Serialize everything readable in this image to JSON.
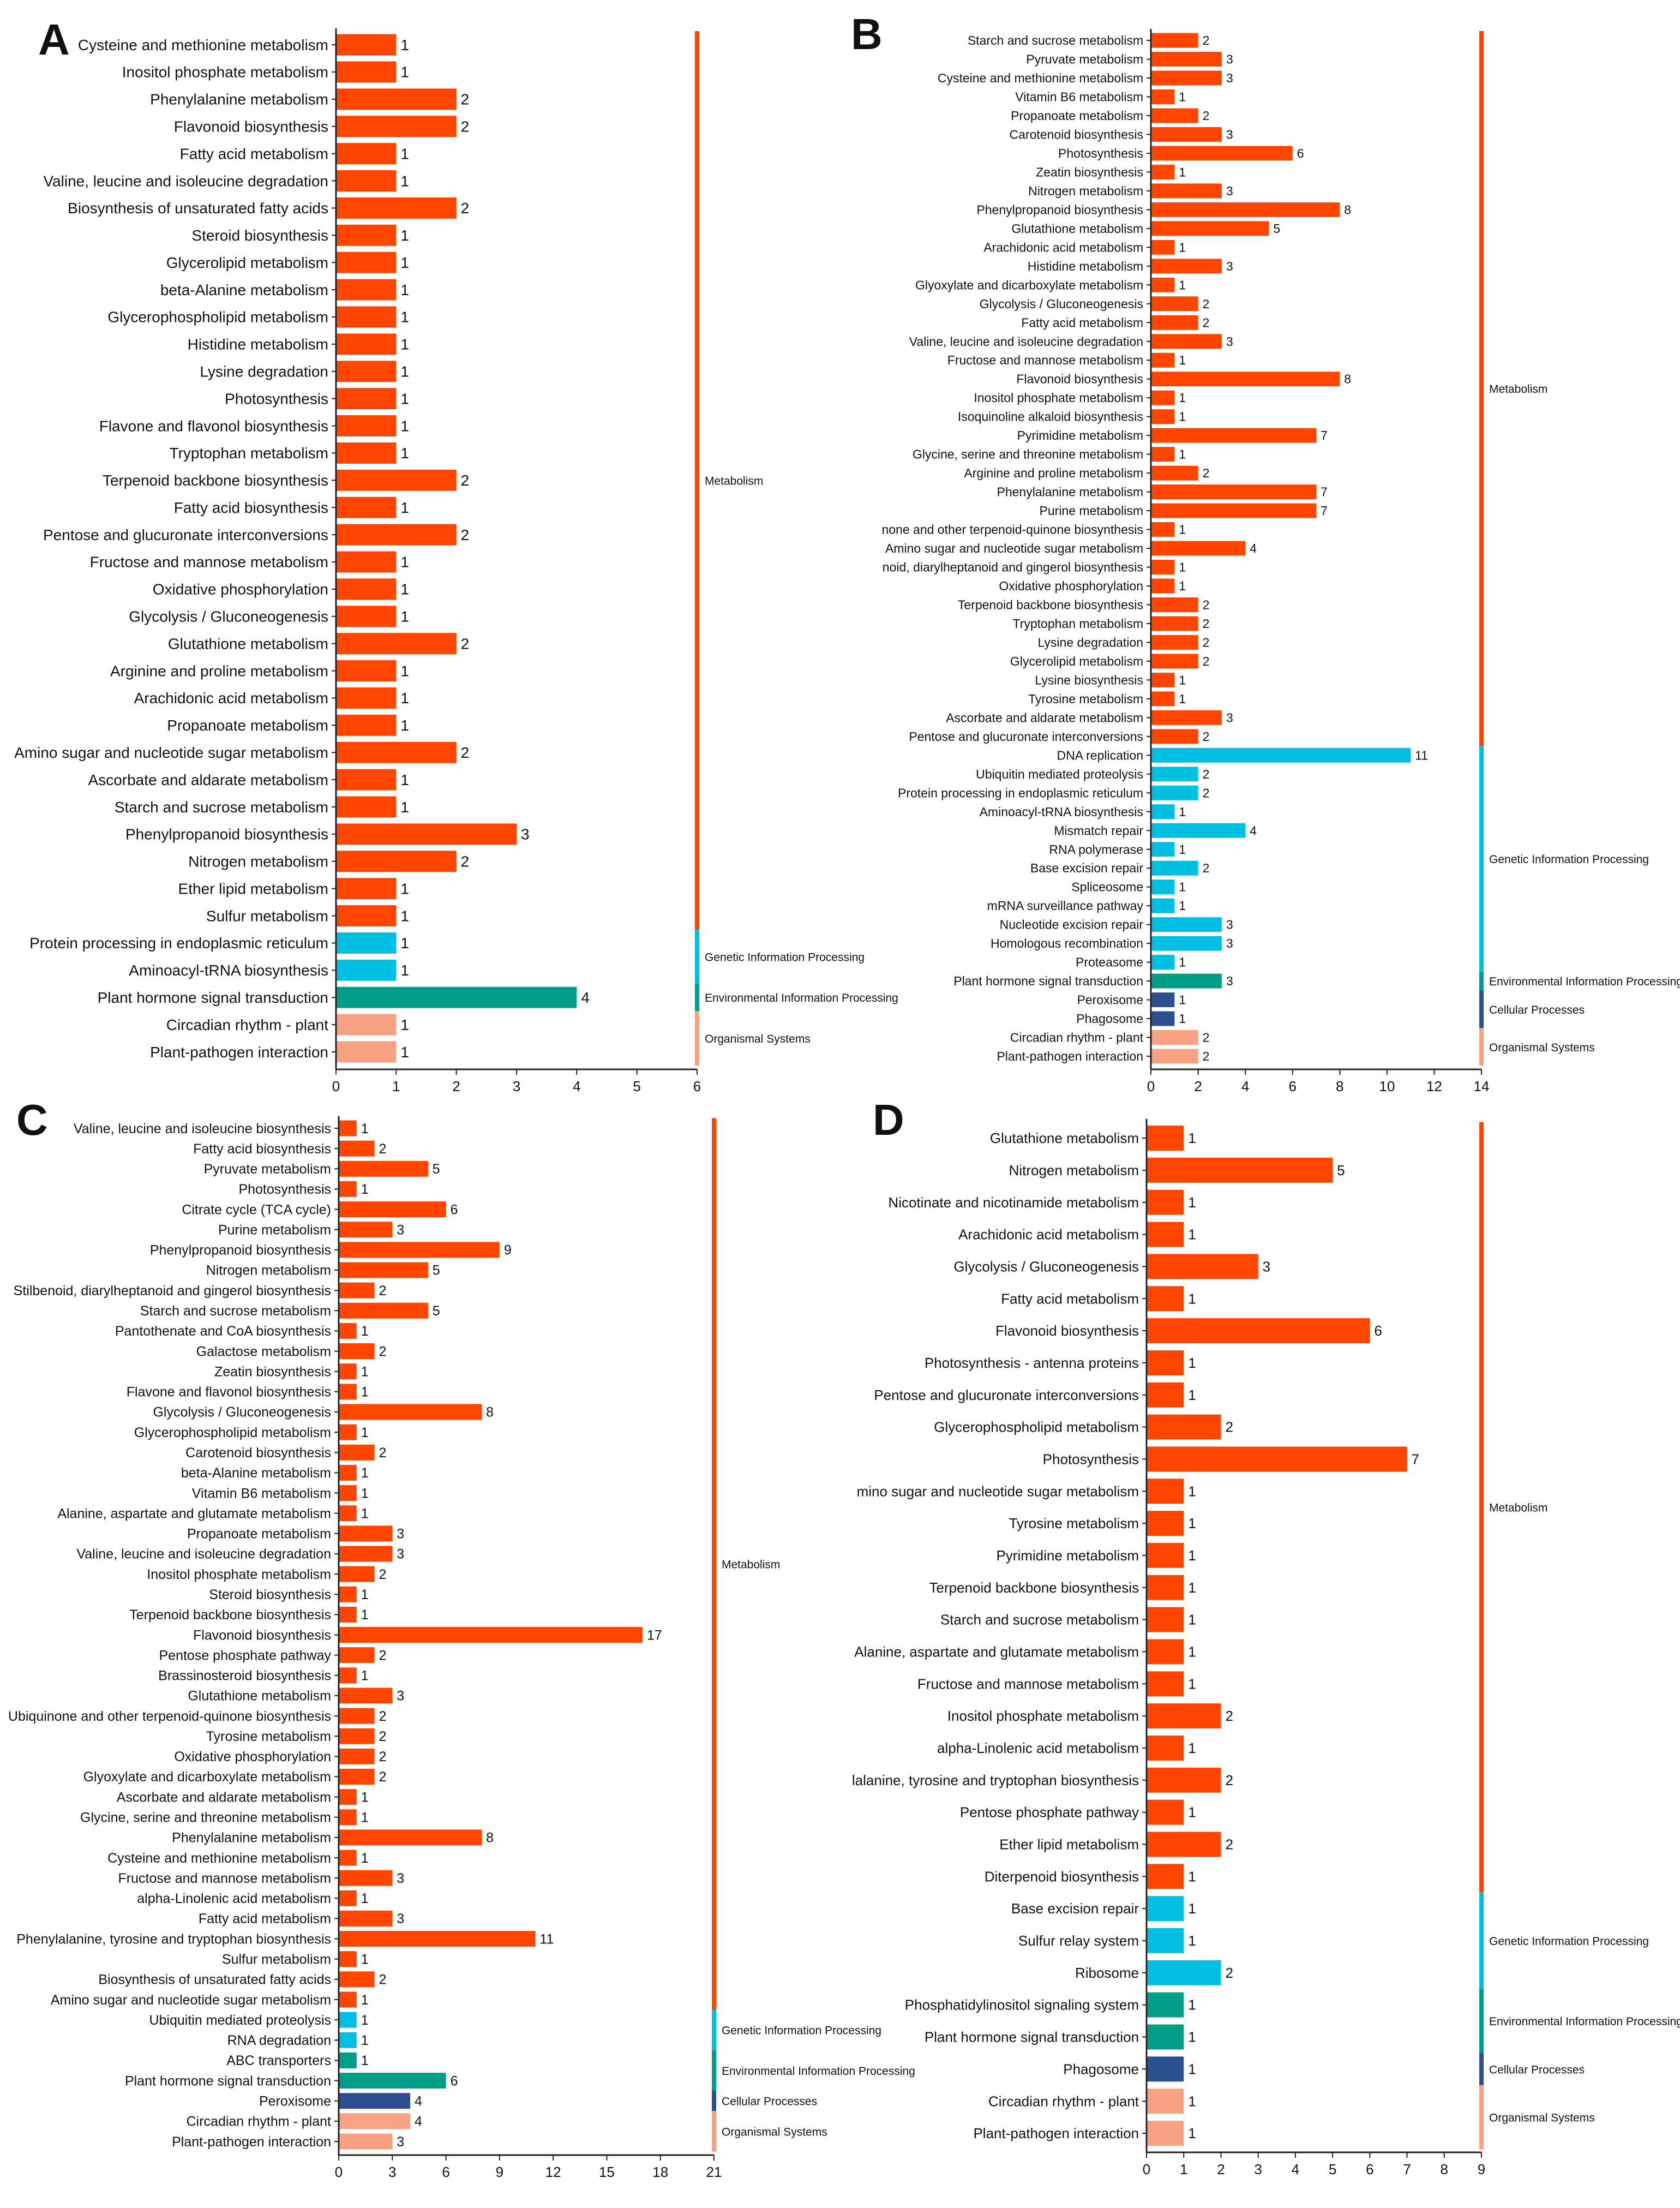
{
  "colors": {
    "Metabolism": "#FF4500",
    "Genetic Information Processing": "#00BFE3",
    "Environmental Information Processing": "#009E86",
    "Cellular Processes": "#2B4F8F",
    "Organismal Systems": "#F9A183"
  },
  "chart_data": [
    {
      "panel": "A",
      "type": "bar",
      "orientation": "horizontal",
      "xlim": [
        0,
        6
      ],
      "xticks": [
        0,
        1,
        2,
        3,
        4,
        5,
        6
      ],
      "groups": [
        {
          "name": "Metabolism",
          "items": [
            [
              "Cysteine and methionine metabolism",
              1
            ],
            [
              "Inositol phosphate metabolism",
              1
            ],
            [
              "Phenylalanine metabolism",
              2
            ],
            [
              "Flavonoid biosynthesis",
              2
            ],
            [
              "Fatty acid metabolism",
              1
            ],
            [
              "Valine, leucine and isoleucine degradation",
              1
            ],
            [
              "Biosynthesis of unsaturated fatty acids",
              2
            ],
            [
              "Steroid biosynthesis",
              1
            ],
            [
              "Glycerolipid metabolism",
              1
            ],
            [
              "beta-Alanine metabolism",
              1
            ],
            [
              "Glycerophospholipid metabolism",
              1
            ],
            [
              "Histidine metabolism",
              1
            ],
            [
              "Lysine degradation",
              1
            ],
            [
              "Photosynthesis",
              1
            ],
            [
              "Flavone and flavonol biosynthesis",
              1
            ],
            [
              "Tryptophan metabolism",
              1
            ],
            [
              "Terpenoid backbone biosynthesis",
              2
            ],
            [
              "Fatty acid biosynthesis",
              1
            ],
            [
              "Pentose and glucuronate interconversions",
              2
            ],
            [
              "Fructose and mannose metabolism",
              1
            ],
            [
              "Oxidative phosphorylation",
              1
            ],
            [
              "Glycolysis / Gluconeogenesis",
              1
            ],
            [
              "Glutathione metabolism",
              2
            ],
            [
              "Arginine and proline metabolism",
              1
            ],
            [
              "Arachidonic acid metabolism",
              1
            ],
            [
              "Propanoate metabolism",
              1
            ],
            [
              "Amino sugar and nucleotide sugar metabolism",
              2
            ],
            [
              "Ascorbate and aldarate metabolism",
              1
            ],
            [
              "Starch and sucrose metabolism",
              1
            ],
            [
              "Phenylpropanoid biosynthesis",
              3
            ],
            [
              "Nitrogen metabolism",
              2
            ],
            [
              "Ether lipid metabolism",
              1
            ],
            [
              "Sulfur metabolism",
              1
            ]
          ]
        },
        {
          "name": "Genetic Information Processing",
          "items": [
            [
              "Protein processing in endoplasmic reticulum",
              1
            ],
            [
              "Aminoacyl-tRNA biosynthesis",
              1
            ]
          ]
        },
        {
          "name": "Environmental Information Processing",
          "items": [
            [
              "Plant hormone signal transduction",
              4
            ]
          ]
        },
        {
          "name": "Organismal Systems",
          "items": [
            [
              "Circadian rhythm - plant",
              1
            ],
            [
              "Plant-pathogen interaction",
              1
            ]
          ]
        }
      ]
    },
    {
      "panel": "B",
      "type": "bar",
      "orientation": "horizontal",
      "xlim": [
        0,
        14
      ],
      "xticks": [
        0,
        2,
        4,
        6,
        8,
        10,
        12,
        14
      ],
      "groups": [
        {
          "name": "Metabolism",
          "items": [
            [
              "Starch and sucrose metabolism",
              2
            ],
            [
              "Pyruvate metabolism",
              3
            ],
            [
              "Cysteine and methionine metabolism",
              3
            ],
            [
              "Vitamin B6 metabolism",
              1
            ],
            [
              "Propanoate metabolism",
              2
            ],
            [
              "Carotenoid biosynthesis",
              3
            ],
            [
              "Photosynthesis",
              6
            ],
            [
              "Zeatin biosynthesis",
              1
            ],
            [
              "Nitrogen metabolism",
              3
            ],
            [
              "Phenylpropanoid biosynthesis",
              8
            ],
            [
              "Glutathione metabolism",
              5
            ],
            [
              "Arachidonic acid metabolism",
              1
            ],
            [
              "Histidine metabolism",
              3
            ],
            [
              "Glyoxylate and dicarboxylate metabolism",
              1
            ],
            [
              "Glycolysis / Gluconeogenesis",
              2
            ],
            [
              "Fatty acid metabolism",
              2
            ],
            [
              "Valine, leucine and isoleucine degradation",
              3
            ],
            [
              "Fructose and mannose metabolism",
              1
            ],
            [
              "Flavonoid biosynthesis",
              8
            ],
            [
              "Inositol phosphate metabolism",
              1
            ],
            [
              "Isoquinoline alkaloid biosynthesis",
              1
            ],
            [
              "Pyrimidine metabolism",
              7
            ],
            [
              "Glycine, serine and threonine metabolism",
              1
            ],
            [
              "Arginine and proline metabolism",
              2
            ],
            [
              "Phenylalanine metabolism",
              7
            ],
            [
              "Purine metabolism",
              7
            ],
            [
              "none and other terpenoid-quinone biosynthesis",
              1
            ],
            [
              "Amino sugar and nucleotide sugar metabolism",
              4
            ],
            [
              "noid, diarylheptanoid and gingerol biosynthesis",
              1
            ],
            [
              "Oxidative phosphorylation",
              1
            ],
            [
              "Terpenoid backbone biosynthesis",
              2
            ],
            [
              "Tryptophan metabolism",
              2
            ],
            [
              "Lysine degradation",
              2
            ],
            [
              "Glycerolipid metabolism",
              2
            ],
            [
              "Lysine biosynthesis",
              1
            ],
            [
              "Tyrosine metabolism",
              1
            ],
            [
              "Ascorbate and aldarate metabolism",
              3
            ],
            [
              "Pentose and glucuronate interconversions",
              2
            ]
          ]
        },
        {
          "name": "Genetic Information Processing",
          "items": [
            [
              "DNA replication",
              11
            ],
            [
              "Ubiquitin mediated proteolysis",
              2
            ],
            [
              "Protein processing in endoplasmic reticulum",
              2
            ],
            [
              "Aminoacyl-tRNA biosynthesis",
              1
            ],
            [
              "Mismatch repair",
              4
            ],
            [
              "RNA polymerase",
              1
            ],
            [
              "Base excision repair",
              2
            ],
            [
              "Spliceosome",
              1
            ],
            [
              "mRNA surveillance pathway",
              1
            ],
            [
              "Nucleotide excision repair",
              3
            ],
            [
              "Homologous recombination",
              3
            ],
            [
              "Proteasome",
              1
            ]
          ]
        },
        {
          "name": "Environmental Information Processing",
          "items": [
            [
              "Plant hormone signal transduction",
              3
            ]
          ]
        },
        {
          "name": "Cellular Processes",
          "items": [
            [
              "Peroxisome",
              1
            ],
            [
              "Phagosome",
              1
            ]
          ]
        },
        {
          "name": "Organismal Systems",
          "items": [
            [
              "Circadian rhythm - plant",
              2
            ],
            [
              "Plant-pathogen interaction",
              2
            ]
          ]
        }
      ]
    },
    {
      "panel": "C",
      "type": "bar",
      "orientation": "horizontal",
      "xlim": [
        0,
        21
      ],
      "xticks": [
        0,
        3,
        6,
        9,
        12,
        15,
        18,
        21
      ],
      "groups": [
        {
          "name": "Metabolism",
          "items": [
            [
              "Valine, leucine and isoleucine biosynthesis",
              1
            ],
            [
              "Fatty acid biosynthesis",
              2
            ],
            [
              "Pyruvate metabolism",
              5
            ],
            [
              "Photosynthesis",
              1
            ],
            [
              "Citrate cycle (TCA cycle)",
              6
            ],
            [
              "Purine metabolism",
              3
            ],
            [
              "Phenylpropanoid biosynthesis",
              9
            ],
            [
              "Nitrogen metabolism",
              5
            ],
            [
              "Stilbenoid, diarylheptanoid and gingerol biosynthesis",
              2
            ],
            [
              "Starch and sucrose metabolism",
              5
            ],
            [
              "Pantothenate and CoA biosynthesis",
              1
            ],
            [
              "Galactose metabolism",
              2
            ],
            [
              "Zeatin biosynthesis",
              1
            ],
            [
              "Flavone and flavonol biosynthesis",
              1
            ],
            [
              "Glycolysis / Gluconeogenesis",
              8
            ],
            [
              "Glycerophospholipid metabolism",
              1
            ],
            [
              "Carotenoid biosynthesis",
              2
            ],
            [
              "beta-Alanine metabolism",
              1
            ],
            [
              "Vitamin B6 metabolism",
              1
            ],
            [
              "Alanine, aspartate and glutamate metabolism",
              1
            ],
            [
              "Propanoate metabolism",
              3
            ],
            [
              "Valine, leucine and isoleucine degradation",
              3
            ],
            [
              "Inositol phosphate metabolism",
              2
            ],
            [
              "Steroid biosynthesis",
              1
            ],
            [
              "Terpenoid backbone biosynthesis",
              1
            ],
            [
              "Flavonoid biosynthesis",
              17
            ],
            [
              "Pentose phosphate pathway",
              2
            ],
            [
              "Brassinosteroid biosynthesis",
              1
            ],
            [
              "Glutathione metabolism",
              3
            ],
            [
              "Ubiquinone and other terpenoid-quinone biosynthesis",
              2
            ],
            [
              "Tyrosine metabolism",
              2
            ],
            [
              "Oxidative phosphorylation",
              2
            ],
            [
              "Glyoxylate and dicarboxylate metabolism",
              2
            ],
            [
              "Ascorbate and aldarate metabolism",
              1
            ],
            [
              "Glycine, serine and threonine metabolism",
              1
            ],
            [
              "Phenylalanine metabolism",
              8
            ],
            [
              "Cysteine and methionine metabolism",
              1
            ],
            [
              "Fructose and mannose metabolism",
              3
            ],
            [
              "alpha-Linolenic acid metabolism",
              1
            ],
            [
              "Fatty acid metabolism",
              3
            ],
            [
              "Phenylalanine, tyrosine and tryptophan biosynthesis",
              11
            ],
            [
              "Sulfur metabolism",
              1
            ],
            [
              "Biosynthesis of unsaturated fatty acids",
              2
            ],
            [
              "Amino sugar and nucleotide sugar metabolism",
              1
            ]
          ]
        },
        {
          "name": "Genetic Information Processing",
          "items": [
            [
              "Ubiquitin mediated proteolysis",
              1
            ],
            [
              "RNA degradation",
              1
            ]
          ]
        },
        {
          "name": "Environmental Information Processing",
          "items": [
            [
              "ABC transporters",
              1
            ],
            [
              "Plant hormone signal transduction",
              6
            ]
          ]
        },
        {
          "name": "Cellular Processes",
          "items": [
            [
              "Peroxisome",
              4
            ]
          ]
        },
        {
          "name": "Organismal Systems",
          "items": [
            [
              "Circadian rhythm - plant",
              4
            ],
            [
              "Plant-pathogen interaction",
              3
            ]
          ]
        }
      ]
    },
    {
      "panel": "D",
      "type": "bar",
      "orientation": "horizontal",
      "xlim": [
        0,
        9
      ],
      "xticks": [
        0,
        1,
        2,
        3,
        4,
        5,
        6,
        7,
        8,
        9
      ],
      "groups": [
        {
          "name": "Metabolism",
          "items": [
            [
              "Glutathione metabolism",
              1
            ],
            [
              "Nitrogen metabolism",
              5
            ],
            [
              "Nicotinate and nicotinamide metabolism",
              1
            ],
            [
              "Arachidonic acid metabolism",
              1
            ],
            [
              "Glycolysis / Gluconeogenesis",
              3
            ],
            [
              "Fatty acid metabolism",
              1
            ],
            [
              "Flavonoid biosynthesis",
              6
            ],
            [
              "Photosynthesis - antenna proteins",
              1
            ],
            [
              "Pentose and glucuronate interconversions",
              1
            ],
            [
              "Glycerophospholipid metabolism",
              2
            ],
            [
              "Photosynthesis",
              7
            ],
            [
              "mino sugar and nucleotide sugar metabolism",
              1
            ],
            [
              "Tyrosine metabolism",
              1
            ],
            [
              "Pyrimidine metabolism",
              1
            ],
            [
              "Terpenoid backbone biosynthesis",
              1
            ],
            [
              "Starch and sucrose metabolism",
              1
            ],
            [
              "Alanine, aspartate and glutamate metabolism",
              1
            ],
            [
              "Fructose and mannose metabolism",
              1
            ],
            [
              "Inositol phosphate metabolism",
              2
            ],
            [
              "alpha-Linolenic acid metabolism",
              1
            ],
            [
              "lalanine, tyrosine and tryptophan biosynthesis",
              2
            ],
            [
              "Pentose phosphate pathway",
              1
            ],
            [
              "Ether lipid metabolism",
              2
            ],
            [
              "Diterpenoid biosynthesis",
              1
            ]
          ]
        },
        {
          "name": "Genetic Information Processing",
          "items": [
            [
              "Base excision repair",
              1
            ],
            [
              "Sulfur relay system",
              1
            ],
            [
              "Ribosome",
              2
            ]
          ]
        },
        {
          "name": "Environmental Information Processing",
          "items": [
            [
              "Phosphatidylinositol signaling system",
              1
            ],
            [
              "Plant hormone signal transduction",
              1
            ]
          ]
        },
        {
          "name": "Cellular Processes",
          "items": [
            [
              "Phagosome",
              1
            ]
          ]
        },
        {
          "name": "Organismal Systems",
          "items": [
            [
              "Circadian rhythm - plant",
              1
            ],
            [
              "Plant-pathogen interaction",
              1
            ]
          ]
        }
      ]
    }
  ]
}
